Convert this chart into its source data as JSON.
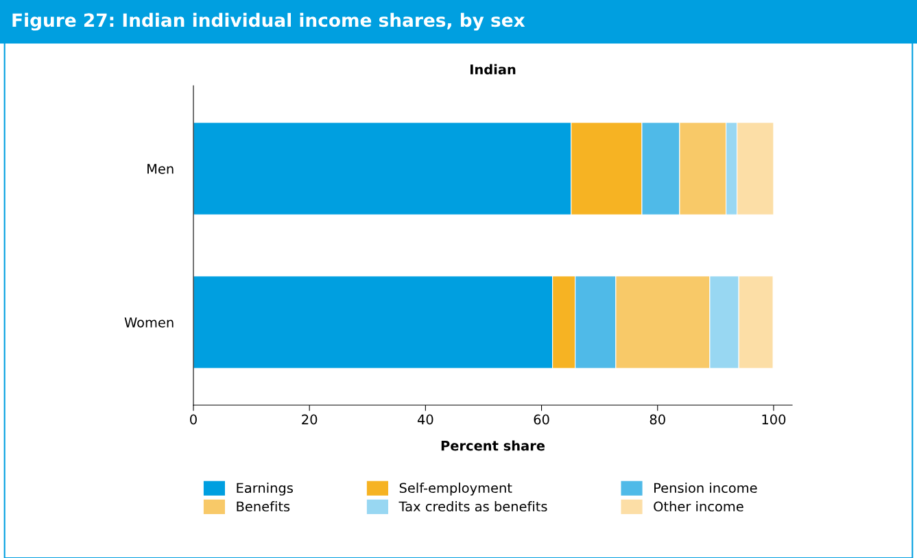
{
  "chart_data": {
    "type": "bar",
    "orientation": "horizontal",
    "stacked": true,
    "title": "Figure 27: Indian individual income shares, by sex",
    "subtitle": "Indian",
    "xlabel": "Percent share",
    "categories": [
      "Men",
      "Women"
    ],
    "series": [
      {
        "name": "Earnings",
        "color": "#009fe0",
        "values": [
          65.1,
          61.9
        ]
      },
      {
        "name": "Self-employment",
        "color": "#f6b323",
        "values": [
          12.2,
          3.9
        ]
      },
      {
        "name": "Pension income",
        "color": "#4fbae8",
        "values": [
          6.5,
          7.0
        ]
      },
      {
        "name": "Benefits",
        "color": "#f8c968",
        "values": [
          8.0,
          16.2
        ]
      },
      {
        "name": "Tax credits as benefits",
        "color": "#98d7f2",
        "values": [
          1.9,
          5.0
        ]
      },
      {
        "name": "Other income",
        "color": "#fcdea6",
        "values": [
          6.3,
          5.9
        ]
      }
    ],
    "xlim": [
      0,
      103.2
    ],
    "xticks": [
      0,
      20,
      40,
      60,
      80,
      100
    ],
    "grid": false,
    "legend": "bottom"
  }
}
